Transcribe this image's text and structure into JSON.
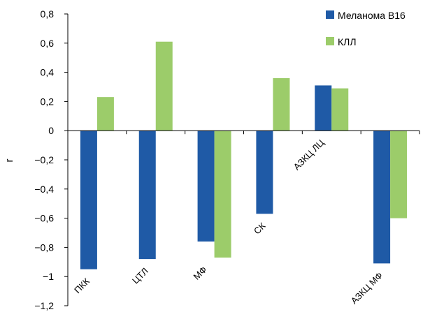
{
  "chart_data": {
    "type": "bar",
    "title": "",
    "xlabel": "",
    "ylabel": "r",
    "ylim": [
      -1.2,
      0.8
    ],
    "yticks": [
      0.8,
      0.6,
      0.4,
      0.2,
      0,
      -0.2,
      -0.4,
      -0.6,
      -0.8,
      -1,
      -1.2
    ],
    "ytick_labels": [
      "0,8",
      "0,6",
      "0,4",
      "0,2",
      "0",
      "−0,2",
      "−0,4",
      "−0,6",
      "−0,8",
      "−1",
      "−1,2"
    ],
    "grid": false,
    "legend_position": "top-right",
    "categories": [
      "ПКК",
      "ЦТЛ",
      "МФ",
      "СК",
      "АЗКЦ ЛЦ",
      "АЗКЦ МФ"
    ],
    "series": [
      {
        "name": "Меланома B16",
        "color": "#1f5aa6",
        "values": [
          -0.95,
          -0.88,
          -0.76,
          -0.57,
          0.31,
          -0.91
        ]
      },
      {
        "name": "КЛЛ",
        "color": "#9ccc6a",
        "values": [
          0.23,
          0.61,
          -0.87,
          0.36,
          0.29,
          -0.6
        ]
      }
    ]
  }
}
